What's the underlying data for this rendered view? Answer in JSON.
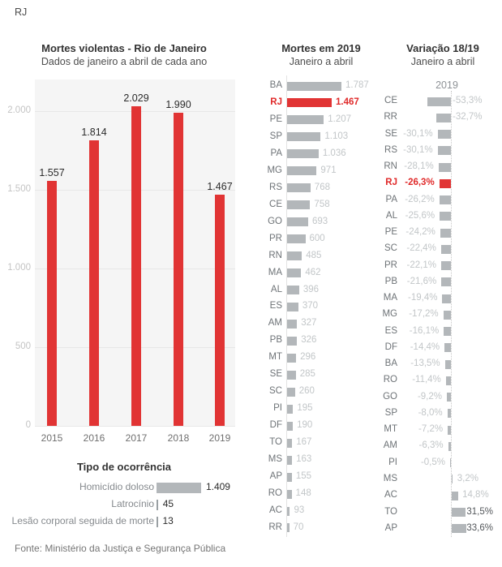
{
  "page": {
    "corner_label": "RJ",
    "footer": "Fonte: Ministério da Justiça e Segurança Pública"
  },
  "colors": {
    "accent_red": "#e13434",
    "bar_gray": "#b3b7ba",
    "tick_gray": "#9aa0a3",
    "light_label": "#c2c6c8",
    "plot_bg": "#f5f5f5"
  },
  "chart_data": [
    {
      "id": "mortes-violentas-rj",
      "type": "bar",
      "title": "Mortes violentas - Rio de Janeiro",
      "subtitle": "Dados de janeiro a abril de cada ano",
      "categories": [
        "2015",
        "2016",
        "2017",
        "2018",
        "2019"
      ],
      "values": [
        1557,
        1814,
        2029,
        1990,
        1467
      ],
      "value_labels": [
        "1.557",
        "1.814",
        "2.029",
        "1.990",
        "1.467"
      ],
      "y_ticks": [
        {
          "value": 0,
          "label": "0"
        },
        {
          "value": 500,
          "label": "500"
        },
        {
          "value": 1000,
          "label": "1.000"
        },
        {
          "value": 1500,
          "label": "1.500"
        },
        {
          "value": 2000,
          "label": "2.000"
        }
      ],
      "ylim": [
        0,
        2200
      ],
      "grid": true,
      "bar_color": "red"
    },
    {
      "id": "tipo-ocorrencia",
      "type": "bar",
      "title": "Tipo de ocorrência",
      "categories": [
        "Homicídio doloso",
        "Latrocínio",
        "Lesão corporal seguida de morte"
      ],
      "values": [
        1409,
        45,
        13
      ],
      "value_labels": [
        "1.409",
        "45",
        "13"
      ]
    },
    {
      "id": "mortes-2019",
      "type": "bar",
      "title": "Mortes em 2019",
      "subtitle": "Janeiro a abril",
      "rows": [
        {
          "state": "BA",
          "value": 1787,
          "label": "1.787",
          "highlight": false
        },
        {
          "state": "RJ",
          "value": 1467,
          "label": "1.467",
          "highlight": true
        },
        {
          "state": "PE",
          "value": 1207,
          "label": "1.207",
          "highlight": false
        },
        {
          "state": "SP",
          "value": 1103,
          "label": "1.103",
          "highlight": false
        },
        {
          "state": "PA",
          "value": 1036,
          "label": "1.036",
          "highlight": false
        },
        {
          "state": "MG",
          "value": 971,
          "label": "971",
          "highlight": false
        },
        {
          "state": "RS",
          "value": 768,
          "label": "768",
          "highlight": false
        },
        {
          "state": "CE",
          "value": 758,
          "label": "758",
          "highlight": false
        },
        {
          "state": "GO",
          "value": 693,
          "label": "693",
          "highlight": false
        },
        {
          "state": "PR",
          "value": 600,
          "label": "600",
          "highlight": false
        },
        {
          "state": "RN",
          "value": 485,
          "label": "485",
          "highlight": false
        },
        {
          "state": "MA",
          "value": 462,
          "label": "462",
          "highlight": false
        },
        {
          "state": "AL",
          "value": 396,
          "label": "396",
          "highlight": false
        },
        {
          "state": "ES",
          "value": 370,
          "label": "370",
          "highlight": false
        },
        {
          "state": "AM",
          "value": 327,
          "label": "327",
          "highlight": false
        },
        {
          "state": "PB",
          "value": 326,
          "label": "326",
          "highlight": false
        },
        {
          "state": "MT",
          "value": 296,
          "label": "296",
          "highlight": false
        },
        {
          "state": "SE",
          "value": 285,
          "label": "285",
          "highlight": false
        },
        {
          "state": "SC",
          "value": 260,
          "label": "260",
          "highlight": false
        },
        {
          "state": "PI",
          "value": 195,
          "label": "195",
          "highlight": false
        },
        {
          "state": "DF",
          "value": 190,
          "label": "190",
          "highlight": false
        },
        {
          "state": "TO",
          "value": 167,
          "label": "167",
          "highlight": false
        },
        {
          "state": "MS",
          "value": 163,
          "label": "163",
          "highlight": false
        },
        {
          "state": "AP",
          "value": 155,
          "label": "155",
          "highlight": false
        },
        {
          "state": "RO",
          "value": 148,
          "label": "148",
          "highlight": false
        },
        {
          "state": "AC",
          "value": 93,
          "label": "93",
          "highlight": false
        },
        {
          "state": "RR",
          "value": 70,
          "label": "70",
          "highlight": false
        }
      ]
    },
    {
      "id": "variacao-18-19",
      "type": "bar",
      "title": "Variação 18/19",
      "subtitle": "Janeiro a abril",
      "column_label": "2019",
      "rows": [
        {
          "state": "CE",
          "value": -53.3,
          "label": "-53,3%",
          "highlight": false,
          "label_pos": "axis"
        },
        {
          "state": "RR",
          "value": -32.7,
          "label": "-32,7%",
          "highlight": false,
          "label_pos": "axis"
        },
        {
          "state": "SE",
          "value": -30.1,
          "label": "-30,1%",
          "highlight": false,
          "label_pos": "left"
        },
        {
          "state": "RS",
          "value": -30.1,
          "label": "-30,1%",
          "highlight": false,
          "label_pos": "left"
        },
        {
          "state": "RN",
          "value": -28.1,
          "label": "-28,1%",
          "highlight": false,
          "label_pos": "left"
        },
        {
          "state": "RJ",
          "value": -26.3,
          "label": "-26,3%",
          "highlight": true,
          "label_pos": "left"
        },
        {
          "state": "PA",
          "value": -26.2,
          "label": "-26,2%",
          "highlight": false,
          "label_pos": "left"
        },
        {
          "state": "AL",
          "value": -25.6,
          "label": "-25,6%",
          "highlight": false,
          "label_pos": "left"
        },
        {
          "state": "PE",
          "value": -24.2,
          "label": "-24,2%",
          "highlight": false,
          "label_pos": "left"
        },
        {
          "state": "SC",
          "value": -22.4,
          "label": "-22,4%",
          "highlight": false,
          "label_pos": "left"
        },
        {
          "state": "PR",
          "value": -22.1,
          "label": "-22,1%",
          "highlight": false,
          "label_pos": "left"
        },
        {
          "state": "PB",
          "value": -21.6,
          "label": "-21,6%",
          "highlight": false,
          "label_pos": "left"
        },
        {
          "state": "MA",
          "value": -19.4,
          "label": "-19,4%",
          "highlight": false,
          "label_pos": "left"
        },
        {
          "state": "MG",
          "value": -17.2,
          "label": "-17,2%",
          "highlight": false,
          "label_pos": "left"
        },
        {
          "state": "ES",
          "value": -16.1,
          "label": "-16,1%",
          "highlight": false,
          "label_pos": "left"
        },
        {
          "state": "DF",
          "value": -14.4,
          "label": "-14,4%",
          "highlight": false,
          "label_pos": "left"
        },
        {
          "state": "BA",
          "value": -13.5,
          "label": "-13,5%",
          "highlight": false,
          "label_pos": "left"
        },
        {
          "state": "RO",
          "value": -11.4,
          "label": "-11,4%",
          "highlight": false,
          "label_pos": "left"
        },
        {
          "state": "GO",
          "value": -9.2,
          "label": "-9,2%",
          "highlight": false,
          "label_pos": "left"
        },
        {
          "state": "SP",
          "value": -8.0,
          "label": "-8,0%",
          "highlight": false,
          "label_pos": "left"
        },
        {
          "state": "MT",
          "value": -7.2,
          "label": "-7,2%",
          "highlight": false,
          "label_pos": "left"
        },
        {
          "state": "AM",
          "value": -6.3,
          "label": "-6,3%",
          "highlight": false,
          "label_pos": "left"
        },
        {
          "state": "PI",
          "value": -0.5,
          "label": "-0,5%",
          "highlight": false,
          "label_pos": "left"
        },
        {
          "state": "MS",
          "value": 3.2,
          "label": "3,2%",
          "highlight": false,
          "label_pos": "right"
        },
        {
          "state": "AC",
          "value": 14.8,
          "label": "14,8%",
          "highlight": false,
          "label_pos": "right"
        },
        {
          "state": "TO",
          "value": 31.5,
          "label": "31,5%",
          "highlight": false,
          "label_pos": "edge"
        },
        {
          "state": "AP",
          "value": 33.6,
          "label": "33,6%",
          "highlight": false,
          "label_pos": "edge"
        }
      ]
    }
  ]
}
